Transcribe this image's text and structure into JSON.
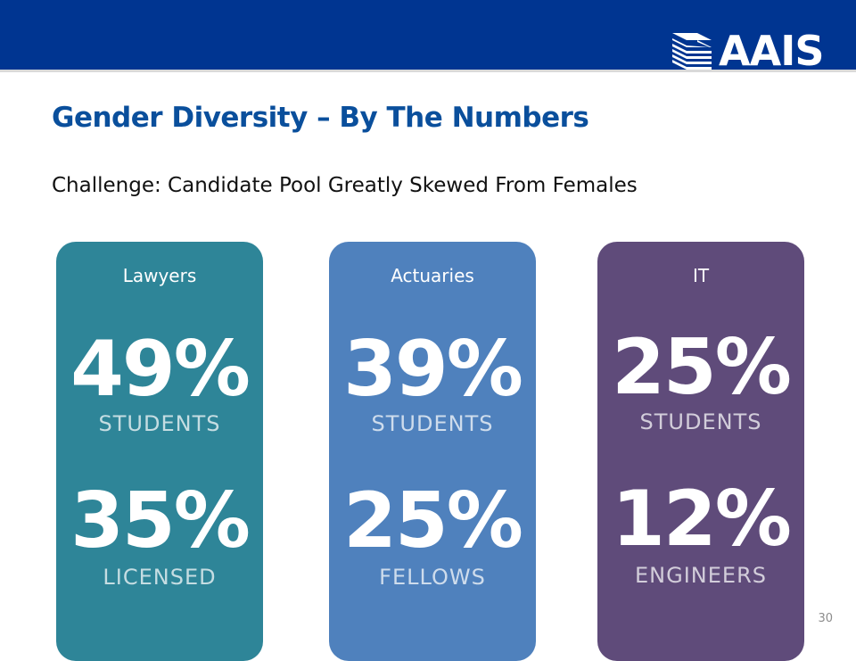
{
  "brand": {
    "name": "AAIS",
    "header_color": "#003591"
  },
  "slide": {
    "title": "Gender Diversity – By The Numbers",
    "subtitle": "Challenge: Candidate Pool Greatly Skewed From Females",
    "page_number": "30"
  },
  "cards": [
    {
      "label": "Lawyers",
      "stat1": "49%",
      "caption1": "STUDENTS",
      "stat2": "35%",
      "caption2": "LICENSED",
      "color": "#2e8598"
    },
    {
      "label": "Actuaries",
      "stat1": "39%",
      "caption1": "STUDENTS",
      "stat2": "25%",
      "caption2": "FELLOWS",
      "color": "#4f81bd"
    },
    {
      "label": "IT",
      "stat1": "25%",
      "caption1": "STUDENTS",
      "stat2": "12%",
      "caption2": "ENGINEERS",
      "color": "#5f4b7a"
    }
  ]
}
